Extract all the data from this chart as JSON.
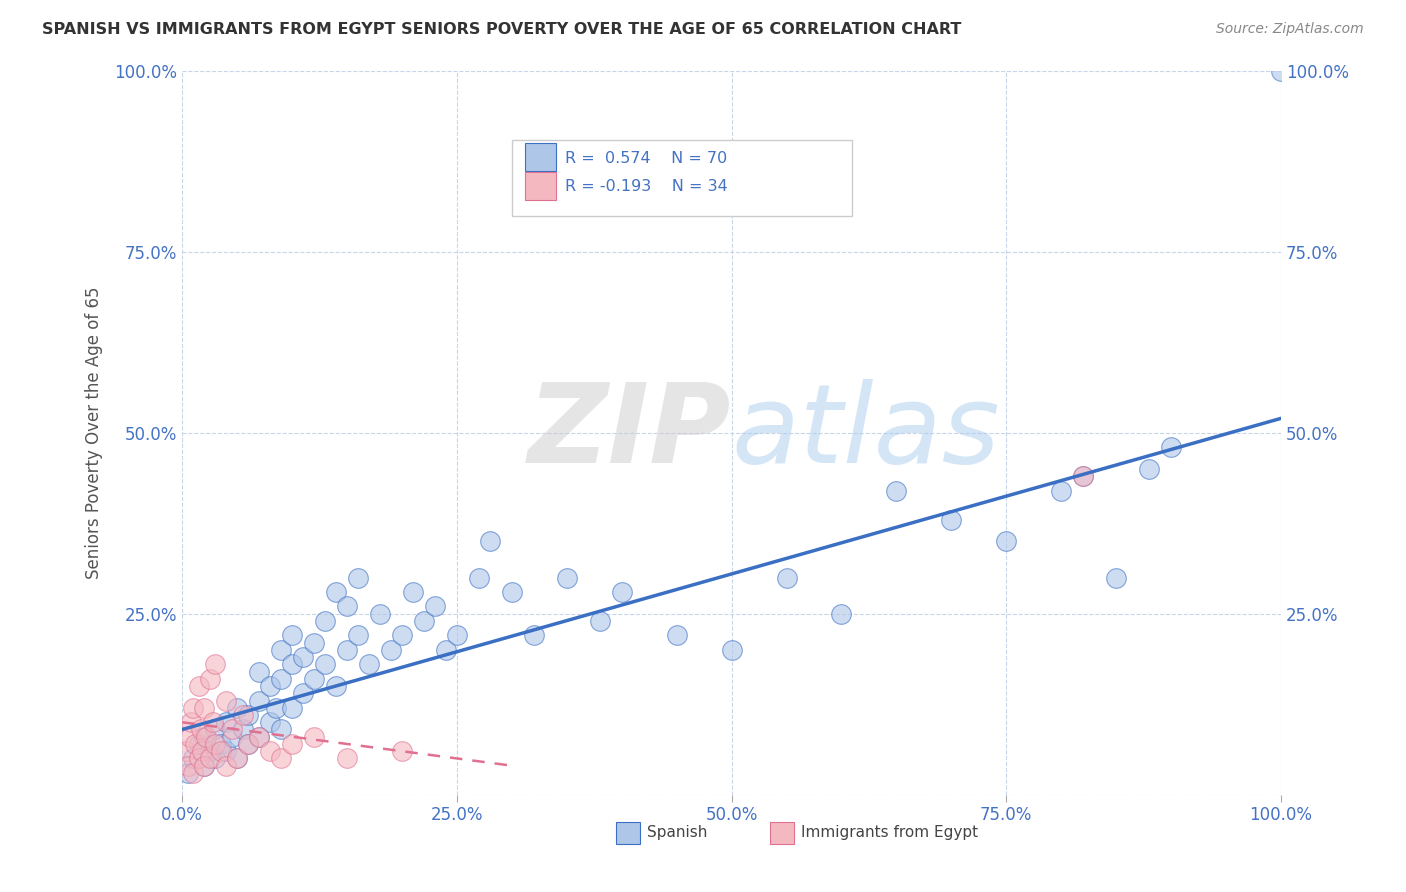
{
  "title": "SPANISH VS IMMIGRANTS FROM EGYPT SENIORS POVERTY OVER THE AGE OF 65 CORRELATION CHART",
  "source": "Source: ZipAtlas.com",
  "ylabel": "Seniors Poverty Over the Age of 65",
  "xlim": [
    0,
    1.0
  ],
  "ylim": [
    0,
    1.0
  ],
  "legend_R1": "R =  0.574",
  "legend_N1": "N = 70",
  "legend_R2": "R = -0.193",
  "legend_N2": "N = 34",
  "color_spanish": "#aec6e8",
  "color_egypt": "#f4b8c1",
  "color_line_spanish": "#3a6fc4",
  "color_line_egypt": "#e07090",
  "color_text_blue": "#4472c4",
  "background_color": "#ffffff",
  "grid_color": "#c8d4e8",
  "spanish_x": [
    0.005,
    0.01,
    0.015,
    0.02,
    0.02,
    0.025,
    0.03,
    0.03,
    0.035,
    0.04,
    0.04,
    0.045,
    0.05,
    0.05,
    0.055,
    0.06,
    0.06,
    0.07,
    0.07,
    0.07,
    0.08,
    0.08,
    0.085,
    0.09,
    0.09,
    0.09,
    0.1,
    0.1,
    0.1,
    0.11,
    0.11,
    0.12,
    0.12,
    0.13,
    0.13,
    0.14,
    0.14,
    0.15,
    0.15,
    0.16,
    0.16,
    0.17,
    0.18,
    0.19,
    0.2,
    0.21,
    0.22,
    0.23,
    0.24,
    0.25,
    0.27,
    0.28,
    0.3,
    0.32,
    0.35,
    0.38,
    0.4,
    0.45,
    0.5,
    0.55,
    0.6,
    0.65,
    0.7,
    0.75,
    0.8,
    0.82,
    0.85,
    0.88,
    0.9,
    1.0
  ],
  "spanish_y": [
    0.03,
    0.05,
    0.07,
    0.04,
    0.08,
    0.06,
    0.05,
    0.09,
    0.07,
    0.06,
    0.1,
    0.08,
    0.05,
    0.12,
    0.09,
    0.07,
    0.11,
    0.08,
    0.13,
    0.17,
    0.1,
    0.15,
    0.12,
    0.09,
    0.16,
    0.2,
    0.12,
    0.18,
    0.22,
    0.14,
    0.19,
    0.16,
    0.21,
    0.18,
    0.24,
    0.15,
    0.28,
    0.2,
    0.26,
    0.22,
    0.3,
    0.18,
    0.25,
    0.2,
    0.22,
    0.28,
    0.24,
    0.26,
    0.2,
    0.22,
    0.3,
    0.35,
    0.28,
    0.22,
    0.3,
    0.24,
    0.28,
    0.22,
    0.2,
    0.3,
    0.25,
    0.42,
    0.38,
    0.35,
    0.42,
    0.44,
    0.3,
    0.45,
    0.48,
    1.0
  ],
  "egypt_x": [
    0.003,
    0.005,
    0.007,
    0.008,
    0.01,
    0.01,
    0.012,
    0.015,
    0.015,
    0.017,
    0.018,
    0.02,
    0.02,
    0.022,
    0.025,
    0.025,
    0.028,
    0.03,
    0.03,
    0.035,
    0.04,
    0.04,
    0.045,
    0.05,
    0.055,
    0.06,
    0.07,
    0.08,
    0.09,
    0.1,
    0.12,
    0.15,
    0.2,
    0.82
  ],
  "egypt_y": [
    0.06,
    0.04,
    0.08,
    0.1,
    0.03,
    0.12,
    0.07,
    0.05,
    0.15,
    0.09,
    0.06,
    0.04,
    0.12,
    0.08,
    0.05,
    0.16,
    0.1,
    0.07,
    0.18,
    0.06,
    0.04,
    0.13,
    0.09,
    0.05,
    0.11,
    0.07,
    0.08,
    0.06,
    0.05,
    0.07,
    0.08,
    0.05,
    0.06,
    0.44
  ],
  "sp_line_x": [
    0.0,
    1.0
  ],
  "sp_line_y": [
    0.09,
    0.52
  ],
  "eg_line_x": [
    0.0,
    0.3
  ],
  "eg_line_y": [
    0.1,
    0.04
  ]
}
